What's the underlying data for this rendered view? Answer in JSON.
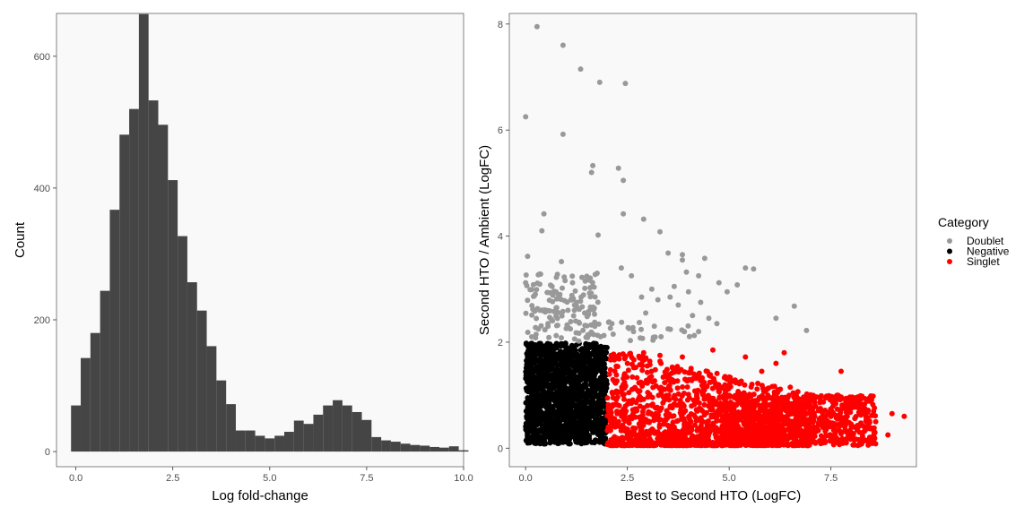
{
  "chart_data": [
    {
      "type": "bar",
      "xlabel": "Log fold-change",
      "ylabel": "Count",
      "xlim": [
        -0.5,
        10.0
      ],
      "ylim": [
        -23,
        665
      ],
      "x_ticks": [
        0.0,
        2.5,
        5.0,
        7.5,
        10.0
      ],
      "x_tick_labels": [
        "0.0",
        "2.5",
        "5.0",
        "7.5",
        "10.0"
      ],
      "y_ticks": [
        0,
        200,
        400,
        600
      ],
      "y_tick_labels": [
        "0",
        "200",
        "400",
        "600"
      ],
      "grid": false,
      "bin_width": 0.25,
      "bin_start": -0.125,
      "values": [
        70,
        142,
        180,
        244,
        367,
        481,
        520,
        664,
        533,
        496,
        412,
        327,
        257,
        214,
        160,
        108,
        72,
        32,
        32,
        24,
        20,
        24,
        30,
        47,
        42,
        56,
        70,
        78,
        70,
        60,
        48,
        22,
        17,
        15,
        12,
        10,
        9,
        7,
        6,
        8,
        2
      ],
      "bar_color": "#454545"
    },
    {
      "type": "scatter",
      "xlabel": "Best to Second HTO (LogFC)",
      "ylabel": "Second HTO / Ambient (LogFC)",
      "xlim": [
        -0.4,
        9.6
      ],
      "ylim": [
        -0.35,
        8.2
      ],
      "x_ticks": [
        0.0,
        2.5,
        5.0,
        7.5
      ],
      "x_tick_labels": [
        "0.0",
        "2.5",
        "5.0",
        "7.5"
      ],
      "y_ticks": [
        0,
        2,
        4,
        6,
        8
      ],
      "y_tick_labels": [
        "0",
        "2",
        "4",
        "6",
        "8"
      ],
      "grid": false,
      "legend": {
        "title": "Category",
        "position": "right",
        "entries": [
          {
            "label": "Doublet",
            "color": "#999999"
          },
          {
            "label": "Negative",
            "color": "#000000"
          },
          {
            "label": "Singlet",
            "color": "#ff0000"
          }
        ]
      },
      "series": [
        {
          "name": "Doublet",
          "color": "#999999",
          "points": [
            [
              0.28,
              7.95
            ],
            [
              0.92,
              7.6
            ],
            [
              1.35,
              7.15
            ],
            [
              1.82,
              6.9
            ],
            [
              2.45,
              6.88
            ],
            [
              0.0,
              6.25
            ],
            [
              0.92,
              5.92
            ],
            [
              1.65,
              5.33
            ],
            [
              1.62,
              5.2
            ],
            [
              2.28,
              5.28
            ],
            [
              2.4,
              5.05
            ],
            [
              0.45,
              4.42
            ],
            [
              0.4,
              4.1
            ],
            [
              2.4,
              4.42
            ],
            [
              2.9,
              4.32
            ],
            [
              1.78,
              4.02
            ],
            [
              3.3,
              4.08
            ],
            [
              3.5,
              3.68
            ],
            [
              3.85,
              3.65
            ],
            [
              3.85,
              3.55
            ],
            [
              4.4,
              3.58
            ],
            [
              5.4,
              3.4
            ],
            [
              5.6,
              3.38
            ],
            [
              0.88,
              3.52
            ],
            [
              0.05,
              3.62
            ],
            [
              2.35,
              3.4
            ],
            [
              2.6,
              3.25
            ],
            [
              3.95,
              3.32
            ],
            [
              4.25,
              3.25
            ],
            [
              4.75,
              3.12
            ],
            [
              5.2,
              3.08
            ],
            [
              0.9,
              3.02
            ],
            [
              3.1,
              3.0
            ],
            [
              3.65,
              3.05
            ],
            [
              4.0,
              2.95
            ],
            [
              4.95,
              2.95
            ],
            [
              2.85,
              2.85
            ],
            [
              3.25,
              2.8
            ],
            [
              3.55,
              2.85
            ],
            [
              4.3,
              2.75
            ],
            [
              6.6,
              2.68
            ],
            [
              0.35,
              2.6
            ],
            [
              0.75,
              2.65
            ],
            [
              1.2,
              2.6
            ],
            [
              1.45,
              2.55
            ],
            [
              1.55,
              2.58
            ],
            [
              2.95,
              2.55
            ],
            [
              3.75,
              2.7
            ],
            [
              4.5,
              2.45
            ],
            [
              6.15,
              2.45
            ],
            [
              4.1,
              2.5
            ],
            [
              2.05,
              2.38
            ],
            [
              4.7,
              2.35
            ],
            [
              3.9,
              2.2
            ],
            [
              6.9,
              2.22
            ],
            [
              2.65,
              2.2
            ],
            [
              3.5,
              2.25
            ],
            [
              4.25,
              2.2
            ],
            [
              0.15,
              2.1
            ],
            [
              0.55,
              2.3
            ],
            [
              1.1,
              2.25
            ],
            [
              1.7,
              2.3
            ],
            [
              2.15,
              2.15
            ]
          ]
        },
        {
          "name": "Negative",
          "color": "#000000",
          "points": [
            [
              0.05,
              1.95
            ],
            [
              0.3,
              1.92
            ],
            [
              0.6,
              1.96
            ],
            [
              1.0,
              1.9
            ],
            [
              1.4,
              1.85
            ],
            [
              1.85,
              1.92
            ],
            [
              0.15,
              1.6
            ],
            [
              0.5,
              1.62
            ],
            [
              0.9,
              1.55
            ],
            [
              1.25,
              1.6
            ],
            [
              1.7,
              1.5
            ],
            [
              0.1,
              1.25
            ],
            [
              0.45,
              1.3
            ],
            [
              0.8,
              1.22
            ],
            [
              1.2,
              1.3
            ],
            [
              1.6,
              1.2
            ],
            [
              1.95,
              1.25
            ],
            [
              0.05,
              0.95
            ],
            [
              0.35,
              0.98
            ],
            [
              0.7,
              0.9
            ],
            [
              1.1,
              0.95
            ],
            [
              1.5,
              0.92
            ],
            [
              1.9,
              0.88
            ],
            [
              0.2,
              0.65
            ],
            [
              0.55,
              0.6
            ],
            [
              0.95,
              0.68
            ],
            [
              1.35,
              0.62
            ],
            [
              1.75,
              0.6
            ],
            [
              0.1,
              0.35
            ],
            [
              0.45,
              0.3
            ],
            [
              0.85,
              0.38
            ],
            [
              1.3,
              0.32
            ],
            [
              1.7,
              0.3
            ],
            [
              0.2,
              0.12
            ],
            [
              0.6,
              0.1
            ],
            [
              1.0,
              0.12
            ],
            [
              1.45,
              0.1
            ],
            [
              1.9,
              0.12
            ]
          ]
        },
        {
          "name": "Singlet",
          "color": "#ff0000",
          "points": [
            [
              2.1,
              1.75
            ],
            [
              2.5,
              1.6
            ],
            [
              2.9,
              1.8
            ],
            [
              3.3,
              1.75
            ],
            [
              3.85,
              1.72
            ],
            [
              4.6,
              1.85
            ],
            [
              5.4,
              1.72
            ],
            [
              6.35,
              1.8
            ],
            [
              6.15,
              1.6
            ],
            [
              5.8,
              1.45
            ],
            [
              7.75,
              1.45
            ],
            [
              4.9,
              1.35
            ],
            [
              6.5,
              1.15
            ],
            [
              8.45,
              0.95
            ],
            [
              7.0,
              0.95
            ],
            [
              5.95,
              1.0
            ],
            [
              4.7,
              1.15
            ],
            [
              2.4,
              1.2
            ],
            [
              3.0,
              1.05
            ],
            [
              3.8,
              0.9
            ],
            [
              2.3,
              0.8
            ],
            [
              2.7,
              0.7
            ],
            [
              3.2,
              0.65
            ],
            [
              3.6,
              0.6
            ],
            [
              4.2,
              0.55
            ],
            [
              4.9,
              0.6
            ],
            [
              5.5,
              0.55
            ],
            [
              6.2,
              0.6
            ],
            [
              6.8,
              0.55
            ],
            [
              7.4,
              0.45
            ],
            [
              8.0,
              0.4
            ],
            [
              8.6,
              0.5
            ],
            [
              9.0,
              0.65
            ],
            [
              9.3,
              0.6
            ],
            [
              2.2,
              0.4
            ],
            [
              2.6,
              0.3
            ],
            [
              3.1,
              0.35
            ],
            [
              3.7,
              0.3
            ],
            [
              4.3,
              0.25
            ],
            [
              4.9,
              0.3
            ],
            [
              5.6,
              0.35
            ],
            [
              6.3,
              0.3
            ],
            [
              7.0,
              0.28
            ],
            [
              7.6,
              0.25
            ],
            [
              8.2,
              0.3
            ],
            [
              8.9,
              0.25
            ],
            [
              2.4,
              0.1
            ],
            [
              3.0,
              0.08
            ],
            [
              3.5,
              0.12
            ],
            [
              4.1,
              0.1
            ],
            [
              5.0,
              0.12
            ],
            [
              5.8,
              0.1
            ],
            [
              6.6,
              0.12
            ],
            [
              7.3,
              0.1
            ]
          ]
        }
      ],
      "clusters": [
        {
          "series": "Negative",
          "shape": "rect",
          "x": [
            0.0,
            2.0
          ],
          "y": [
            0.08,
            1.98
          ],
          "count": 1500
        },
        {
          "series": "Doublet",
          "shape": "rect",
          "x": [
            0.0,
            1.8
          ],
          "y": [
            2.0,
            3.3
          ],
          "count": 140
        },
        {
          "series": "Doublet",
          "shape": "rect",
          "x": [
            1.8,
            4.2
          ],
          "y": [
            2.0,
            2.4
          ],
          "count": 25
        },
        {
          "series": "Singlet",
          "shape": "decay",
          "x": [
            2.0,
            7.0
          ],
          "y": [
            0.05,
            1.8
          ],
          "count": 1500
        },
        {
          "series": "Singlet",
          "shape": "rect",
          "x": [
            4.8,
            8.6
          ],
          "y": [
            0.05,
            1.0
          ],
          "count": 700
        }
      ]
    }
  ]
}
